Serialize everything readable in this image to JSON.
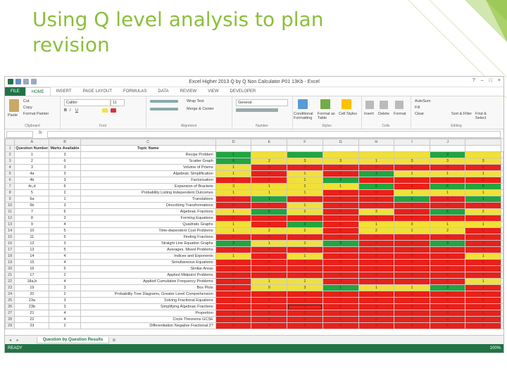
{
  "slide": {
    "title": "Using Q level analysis to plan revision",
    "accent": "#8bbf3a"
  },
  "excel": {
    "window_title": "Excel Higher 2013 Q by Q Non Calculator P01 13Kb - Excel",
    "window_controls": [
      "?",
      "–",
      "□",
      "×"
    ],
    "tabs": [
      "FILE",
      "HOME",
      "INSERT",
      "PAGE LAYOUT",
      "FORMULAS",
      "DATA",
      "REVIEW",
      "VIEW",
      "DEVELOPER"
    ],
    "active_tab": "HOME",
    "ribbon": {
      "clipboard": {
        "paste": "Paste",
        "cut": "Cut",
        "copy": "Copy",
        "format_painter": "Format Painter",
        "label": "Clipboard"
      },
      "font": {
        "font_name": "Calibri",
        "font_size": "11",
        "label": "Font"
      },
      "alignment": {
        "wrap_text": "Wrap Text",
        "merge_center": "Merge & Center",
        "label": "Alignment"
      },
      "number": {
        "format": "General",
        "label": "Number"
      },
      "styles": {
        "conditional": "Conditional Formatting",
        "format_table": "Format as Table",
        "cell_styles": "Cell Styles",
        "label": "Styles"
      },
      "cells": {
        "insert": "Insert",
        "delete": "Delete",
        "format": "Format",
        "label": "Cells"
      },
      "editing": {
        "autosum": "AutoSum",
        "fill": "Fill",
        "clear": "Clear",
        "sort_filter": "Sort & Filter",
        "find_select": "Find & Select",
        "label": "Editing"
      }
    },
    "name_box": "",
    "fx": "fx",
    "columns": [
      "A",
      "B",
      "C",
      "D",
      "E",
      "F",
      "G",
      "H",
      "I",
      "J"
    ],
    "header": {
      "question_number": "Question Number",
      "marks_available": "Marks Available",
      "topic_name": "Topic Name"
    },
    "rows": [
      {
        "q": "1",
        "m": "3",
        "topic": "Recipe Problem",
        "cells": [
          [
            "g",
            "1"
          ],
          [
            "y",
            ""
          ],
          [
            "g",
            ""
          ],
          [
            "y",
            ""
          ],
          [
            "y",
            ""
          ],
          [
            "y",
            ""
          ],
          [
            "g",
            "3"
          ],
          [
            "y",
            ""
          ]
        ]
      },
      {
        "q": "2",
        "m": "6",
        "topic": "Scatter Graph",
        "cells": [
          [
            "g",
            "6"
          ],
          [
            "y",
            "2"
          ],
          [
            "y",
            "3"
          ],
          [
            "y",
            "3"
          ],
          [
            "y",
            "1"
          ],
          [
            "y",
            "3"
          ],
          [
            "y",
            "3"
          ],
          [
            "y",
            "3"
          ]
        ]
      },
      {
        "q": "3",
        "m": "3",
        "topic": "Volume of Prisms",
        "cells": [
          [
            "y",
            "1"
          ],
          [
            "r",
            "0"
          ],
          [
            "r",
            "0"
          ],
          [
            "r",
            "0"
          ],
          [
            "r",
            "0"
          ],
          [
            "r",
            "0"
          ],
          [
            "r",
            "0"
          ],
          [
            "r",
            "0"
          ]
        ]
      },
      {
        "q": "4a",
        "m": "3",
        "topic": "Algebraic Simplification",
        "cells": [
          [
            "y",
            "1"
          ],
          [
            "r",
            "0"
          ],
          [
            "y",
            "1"
          ],
          [
            "r",
            "0"
          ],
          [
            "g",
            "3"
          ],
          [
            "y",
            "1"
          ],
          [
            "y",
            "1"
          ],
          [
            "y",
            "1"
          ]
        ]
      },
      {
        "q": "4b",
        "m": "3",
        "topic": "Factorisation",
        "cells": [
          [
            "r",
            "0"
          ],
          [
            "r",
            "0"
          ],
          [
            "y",
            "1"
          ],
          [
            "g",
            "3"
          ],
          [
            "r",
            "0"
          ],
          [
            "r",
            "0"
          ],
          [
            "r",
            "0"
          ],
          [
            "r",
            "0"
          ]
        ]
      },
      {
        "q": "4c,d",
        "m": "6",
        "topic": "Expansion of Brackets",
        "cells": [
          [
            "y",
            "3"
          ],
          [
            "y",
            "1"
          ],
          [
            "y",
            "2"
          ],
          [
            "y",
            "1"
          ],
          [
            "g",
            "6"
          ],
          [
            "r",
            "0"
          ],
          [
            "g",
            "6"
          ],
          [
            "g",
            "6"
          ]
        ]
      },
      {
        "q": "5",
        "m": "2",
        "topic": "Probability Listing Independent Outcomes",
        "cells": [
          [
            "y",
            "1"
          ],
          [
            "y",
            "1"
          ],
          [
            "y",
            "1"
          ],
          [
            "r",
            "0"
          ],
          [
            "r",
            "0"
          ],
          [
            "y",
            "1"
          ],
          [
            "y",
            "1"
          ],
          [
            "y",
            "1"
          ]
        ]
      },
      {
        "q": "6a",
        "m": "1",
        "topic": "Translations",
        "cells": [
          [
            "r",
            "0"
          ],
          [
            "g",
            "1"
          ],
          [
            "r",
            "0"
          ],
          [
            "r",
            "0"
          ],
          [
            "r",
            "0"
          ],
          [
            "g",
            "1"
          ],
          [
            "r",
            "0"
          ],
          [
            "g",
            "1"
          ]
        ]
      },
      {
        "q": "6b",
        "m": "3",
        "topic": "Describing Transformations",
        "cells": [
          [
            "r",
            "0"
          ],
          [
            "r",
            "0"
          ],
          [
            "y",
            "1"
          ],
          [
            "r",
            "0"
          ],
          [
            "r",
            "0"
          ],
          [
            "r",
            "0"
          ],
          [
            "r",
            "0"
          ],
          [
            "r",
            "0"
          ]
        ]
      },
      {
        "q": "7",
        "m": "6",
        "topic": "Algebraic Fractions",
        "cells": [
          [
            "y",
            "1"
          ],
          [
            "g",
            "6"
          ],
          [
            "y",
            "2"
          ],
          [
            "r",
            "0"
          ],
          [
            "y",
            "3"
          ],
          [
            "r",
            "0"
          ],
          [
            "g",
            "6"
          ],
          [
            "y",
            "2"
          ]
        ]
      },
      {
        "q": "8",
        "m": "3",
        "topic": "Forming Equations",
        "cells": [
          [
            "r",
            "0"
          ],
          [
            "r",
            "0"
          ],
          [
            "r",
            "0"
          ],
          [
            "r",
            "0"
          ],
          [
            "r",
            "0"
          ],
          [
            "r",
            "0"
          ],
          [
            "r",
            "0"
          ],
          [
            "r",
            "0"
          ]
        ]
      },
      {
        "q": "9",
        "m": "4",
        "topic": "Quadratic Graphs",
        "cells": [
          [
            "y",
            "1"
          ],
          [
            "r",
            "0"
          ],
          [
            "g",
            "3"
          ],
          [
            "r",
            "0"
          ],
          [
            "y",
            "1"
          ],
          [
            "y",
            "3"
          ],
          [
            "y",
            "1"
          ],
          [
            "y",
            "1"
          ]
        ]
      },
      {
        "q": "10",
        "m": "5",
        "topic": "Time-dependent Cost Problems",
        "cells": [
          [
            "y",
            "1"
          ],
          [
            "y",
            "2"
          ],
          [
            "y",
            "2"
          ],
          [
            "r",
            "0"
          ],
          [
            "y",
            "2"
          ],
          [
            "y",
            "1"
          ],
          [
            "y",
            "2"
          ],
          [
            "r",
            "0"
          ]
        ]
      },
      {
        "q": "11",
        "m": "5",
        "topic": "Finding Fractions",
        "cells": [
          [
            "r",
            "0"
          ],
          [
            "r",
            "0"
          ],
          [
            "r",
            "0"
          ],
          [
            "r",
            "0"
          ],
          [
            "r",
            "0"
          ],
          [
            "r",
            "0"
          ],
          [
            "r",
            "0"
          ],
          [
            "r",
            "0"
          ]
        ]
      },
      {
        "q": "12",
        "m": "3",
        "topic": "Straight Line Equation Graphs",
        "cells": [
          [
            "g",
            "3"
          ],
          [
            "y",
            "1"
          ],
          [
            "y",
            "2"
          ],
          [
            "g",
            "3"
          ],
          [
            "r",
            "0"
          ],
          [
            "r",
            "0"
          ],
          [
            "g",
            "3"
          ],
          [
            "r",
            "0"
          ]
        ]
      },
      {
        "q": "13",
        "m": "5",
        "topic": "Averages, Mixed Problems",
        "cells": [
          [
            "r",
            "0"
          ],
          [
            "r",
            "0"
          ],
          [
            "r",
            "0"
          ],
          [
            "r",
            "0"
          ],
          [
            "r",
            "0"
          ],
          [
            "r",
            "0"
          ],
          [
            "r",
            "0"
          ],
          [
            "r",
            "0"
          ]
        ]
      },
      {
        "q": "14",
        "m": "4",
        "topic": "Indices and Exponents",
        "cells": [
          [
            "y",
            "1"
          ],
          [
            "r",
            "0"
          ],
          [
            "y",
            "1"
          ],
          [
            "r",
            "0"
          ],
          [
            "r",
            "0"
          ],
          [
            "r",
            "0"
          ],
          [
            "r",
            "0"
          ],
          [
            "y",
            "1"
          ]
        ]
      },
      {
        "q": "15",
        "m": "4",
        "topic": "Simultaneous Equations",
        "cells": [
          [
            "r",
            "0"
          ],
          [
            "r",
            "0"
          ],
          [
            "r",
            "0"
          ],
          [
            "r",
            "0"
          ],
          [
            "r",
            "0"
          ],
          [
            "r",
            "0"
          ],
          [
            "r",
            "0"
          ],
          [
            "r",
            "0"
          ]
        ]
      },
      {
        "q": "16",
        "m": "5",
        "topic": "Similar Areas",
        "cells": [
          [
            "r",
            "0"
          ],
          [
            "r",
            "0"
          ],
          [
            "r",
            "0"
          ],
          [
            "r",
            "0"
          ],
          [
            "r",
            "0"
          ],
          [
            "r",
            "0"
          ],
          [
            "r",
            "0"
          ],
          [
            "r",
            "0"
          ]
        ]
      },
      {
        "q": "17",
        "m": "2",
        "topic": "Applied Midpoint Problems",
        "cells": [
          [
            "r",
            "0"
          ],
          [
            "r",
            "0"
          ],
          [
            "r",
            "0"
          ],
          [
            "r",
            "0"
          ],
          [
            "r",
            "0"
          ],
          [
            "r",
            "0"
          ],
          [
            "r",
            "0"
          ],
          [
            "r",
            "0"
          ]
        ]
      },
      {
        "q": "18a,b",
        "m": "4",
        "topic": "Applied Cumulative Frequency Problems",
        "cells": [
          [
            "r",
            "0"
          ],
          [
            "y",
            "1"
          ],
          [
            "y",
            "1"
          ],
          [
            "r",
            "0"
          ],
          [
            "r",
            "0"
          ],
          [
            "r",
            "0"
          ],
          [
            "r",
            "0"
          ],
          [
            "y",
            "1"
          ]
        ]
      },
      {
        "q": "19",
        "m": "3",
        "topic": "Box Plots",
        "cells": [
          [
            "r",
            "0"
          ],
          [
            "y",
            "0"
          ],
          [
            "y",
            "3"
          ],
          [
            "g",
            "1"
          ],
          [
            "y",
            "1"
          ],
          [
            "y",
            "1"
          ],
          [
            "g",
            "3"
          ],
          [
            "r",
            "0"
          ]
        ]
      },
      {
        "q": "20",
        "m": "2",
        "topic": "Probability Tree Diagrams, Greater Level Comprehension",
        "cells": [
          [
            "r",
            "0"
          ],
          [
            "r",
            "0"
          ],
          [
            "r",
            "0"
          ],
          [
            "r",
            "0"
          ],
          [
            "r",
            "0"
          ],
          [
            "r",
            "0"
          ],
          [
            "r",
            "0"
          ],
          [
            "r",
            "0"
          ]
        ]
      },
      {
        "q": "23a",
        "m": "3",
        "topic": "Solving Fractional Equations",
        "cells": [
          [
            "r",
            "0"
          ],
          [
            "r",
            "0"
          ],
          [
            "r",
            "0"
          ],
          [
            "r",
            "0"
          ],
          [
            "r",
            "0"
          ],
          [
            "r",
            "0"
          ],
          [
            "r",
            "0"
          ],
          [
            "r",
            "0"
          ]
        ]
      },
      {
        "q": "23b",
        "m": "3",
        "topic": "Simplifying Algebraic Fractions",
        "cells": [
          [
            "r",
            "0"
          ],
          [
            "r",
            "0"
          ],
          [
            "r",
            "0"
          ],
          [
            "r",
            "0"
          ],
          [
            "r",
            "0"
          ],
          [
            "r",
            "0"
          ],
          [
            "r",
            "0"
          ],
          [
            "r",
            "0"
          ]
        ]
      },
      {
        "q": "21",
        "m": "4",
        "topic": "Proportion",
        "cells": [
          [
            "r",
            "0"
          ],
          [
            "r",
            "0"
          ],
          [
            "r",
            "0"
          ],
          [
            "r",
            "0"
          ],
          [
            "r",
            "0"
          ],
          [
            "r",
            "0"
          ],
          [
            "r",
            "0"
          ],
          [
            "r",
            "0"
          ]
        ]
      },
      {
        "q": "22",
        "m": "4",
        "topic": "Circle Theorems GCSE",
        "cells": [
          [
            "r",
            "0"
          ],
          [
            "r",
            "0"
          ],
          [
            "r",
            "0"
          ],
          [
            "r",
            "0"
          ],
          [
            "r",
            "0"
          ],
          [
            "r",
            "0"
          ],
          [
            "r",
            "0"
          ],
          [
            "r",
            "0"
          ]
        ]
      },
      {
        "q": "23",
        "m": "2",
        "topic": "Differentiation Negative Fractional 2?",
        "cells": [
          [
            "r",
            "0"
          ],
          [
            "r",
            "0"
          ],
          [
            "r",
            "0"
          ],
          [
            "r",
            "0"
          ],
          [
            "r",
            "0"
          ],
          [
            "r",
            "0"
          ],
          [
            "r",
            "0"
          ],
          [
            "r",
            "0"
          ]
        ]
      }
    ],
    "sheet_tab": "Question by Question Results",
    "status": "READY",
    "zoom": "100%",
    "colors": {
      "green": "#22a540",
      "amber": "#f1e03a",
      "red": "#e8211b",
      "excel_green": "#217346"
    }
  }
}
